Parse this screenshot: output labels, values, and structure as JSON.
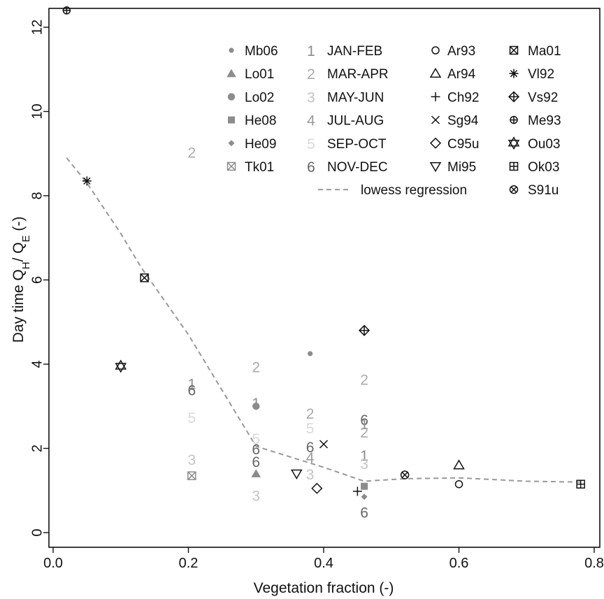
{
  "chart_data": {
    "type": "scatter",
    "xlabel": "Vegetation fraction (-)",
    "ylabel": {
      "prefix": "Day time Q",
      "sub1": "H",
      "mid": "/ Q",
      "sub2": "E",
      "suffix": " (-)"
    },
    "xlim": [
      0.0,
      0.8
    ],
    "ylim": [
      0,
      12
    ],
    "xticks": [
      "0.0",
      "0.2",
      "0.4",
      "0.6",
      "0.8"
    ],
    "yticks": [
      "0",
      "2",
      "4",
      "6",
      "8",
      "10",
      "12"
    ],
    "legend_position": "top-right",
    "colors": {
      "dark": "#111111",
      "mid": "#8c8c8c",
      "month_light": "#d0d0d0"
    },
    "month_labels": [
      {
        "digit": "1",
        "name": "JAN-FEB",
        "color": "#8c8c8c"
      },
      {
        "digit": "2",
        "name": "MAR-APR",
        "color": "#ababab"
      },
      {
        "digit": "3",
        "name": "MAY-JUN",
        "color": "#c4c4c4"
      },
      {
        "digit": "4",
        "name": "JUL-AUG",
        "color": "#9a9a9a"
      },
      {
        "digit": "5",
        "name": "SEP-OCT",
        "color": "#d9d9d9"
      },
      {
        "digit": "6",
        "name": "NOV-DEC",
        "color": "#666666"
      }
    ],
    "legend_col1": [
      {
        "label": "Mb06",
        "marker": "smalldot",
        "color": "#8c8c8c"
      },
      {
        "label": "Lo01",
        "marker": "filledtri",
        "color": "#8c8c8c"
      },
      {
        "label": "Lo02",
        "marker": "filledcircle",
        "color": "#8c8c8c"
      },
      {
        "label": "He08",
        "marker": "filledsquare",
        "color": "#8c8c8c"
      },
      {
        "label": "He09",
        "marker": "filleddiamond",
        "color": "#8c8c8c"
      },
      {
        "label": "Tk01",
        "marker": "boxx",
        "color": "#8c8c8c"
      }
    ],
    "legend_col3": [
      {
        "label": "Ar93",
        "marker": "circle",
        "color": "#111111"
      },
      {
        "label": "Ar94",
        "marker": "triangle",
        "color": "#111111"
      },
      {
        "label": "Ch92",
        "marker": "plus",
        "color": "#111111"
      },
      {
        "label": "Sg94",
        "marker": "cross",
        "color": "#111111"
      },
      {
        "label": "C95u",
        "marker": "diamond",
        "color": "#111111"
      },
      {
        "label": "Mi95",
        "marker": "trianglev",
        "color": "#111111"
      }
    ],
    "legend_col4": [
      {
        "label": "Ma01",
        "marker": "boxx",
        "color": "#111111"
      },
      {
        "label": "Vl92",
        "marker": "asterisk",
        "color": "#111111"
      },
      {
        "label": "Vs92",
        "marker": "diamondplus",
        "color": "#111111"
      },
      {
        "label": "Me93",
        "marker": "circleplus",
        "color": "#111111"
      },
      {
        "label": "Ou03",
        "marker": "star",
        "color": "#111111"
      },
      {
        "label": "Ok03",
        "marker": "boxplus",
        "color": "#111111"
      },
      {
        "label": "S91u",
        "marker": "circlex",
        "color": "#111111"
      }
    ],
    "lowess_label": "lowess regression",
    "lowess": {
      "x": [
        0.02,
        0.05,
        0.1,
        0.13,
        0.2,
        0.3,
        0.4,
        0.46,
        0.52,
        0.6,
        0.7,
        0.78
      ],
      "y": [
        8.9,
        8.3,
        7.1,
        6.3,
        4.7,
        2.05,
        1.55,
        1.22,
        1.28,
        1.3,
        1.22,
        1.2
      ]
    },
    "points": [
      {
        "series": "Me93",
        "x": 0.02,
        "y": 12.4
      },
      {
        "series": "Vl92",
        "x": 0.05,
        "y": 8.35
      },
      {
        "series": "Ma01",
        "x": 0.135,
        "y": 6.05
      },
      {
        "series": "Ou03",
        "x": 0.1,
        "y": 3.95
      },
      {
        "series": "Tk01",
        "x": 0.205,
        "y": 1.35
      },
      {
        "series": "Lo02",
        "x": 0.3,
        "y": 3.0
      },
      {
        "series": "Lo01",
        "x": 0.3,
        "y": 1.4
      },
      {
        "series": "Mb06",
        "x": 0.38,
        "y": 4.25
      },
      {
        "series": "Mi95",
        "x": 0.36,
        "y": 1.4
      },
      {
        "series": "C95u",
        "x": 0.39,
        "y": 1.05
      },
      {
        "series": "Sg94",
        "x": 0.4,
        "y": 2.1
      },
      {
        "series": "Ch92",
        "x": 0.45,
        "y": 0.98
      },
      {
        "series": "Vs92",
        "x": 0.46,
        "y": 4.8
      },
      {
        "series": "He08",
        "x": 0.46,
        "y": 1.1
      },
      {
        "series": "He09",
        "x": 0.46,
        "y": 0.85
      },
      {
        "series": "S91u",
        "x": 0.52,
        "y": 1.37
      },
      {
        "series": "Ar94",
        "x": 0.6,
        "y": 1.6
      },
      {
        "series": "Ar93",
        "x": 0.6,
        "y": 1.15
      },
      {
        "series": "Ok03",
        "x": 0.78,
        "y": 1.15
      }
    ],
    "month_points": [
      {
        "digit": "2",
        "x": 0.205,
        "y": 9.0
      },
      {
        "digit": "1",
        "x": 0.205,
        "y": 3.5
      },
      {
        "digit": "6",
        "x": 0.205,
        "y": 3.35
      },
      {
        "digit": "5",
        "x": 0.205,
        "y": 2.7
      },
      {
        "digit": "3",
        "x": 0.205,
        "y": 1.7
      },
      {
        "digit": "2",
        "x": 0.3,
        "y": 3.9
      },
      {
        "digit": "1",
        "x": 0.3,
        "y": 3.05
      },
      {
        "digit": "5",
        "x": 0.3,
        "y": 2.2
      },
      {
        "digit": "6",
        "x": 0.3,
        "y": 1.95
      },
      {
        "digit": "6",
        "x": 0.3,
        "y": 1.65
      },
      {
        "digit": "3",
        "x": 0.3,
        "y": 0.85
      },
      {
        "digit": "2",
        "x": 0.38,
        "y": 2.8
      },
      {
        "digit": "5",
        "x": 0.38,
        "y": 2.45
      },
      {
        "digit": "6",
        "x": 0.38,
        "y": 2.0
      },
      {
        "digit": "4",
        "x": 0.38,
        "y": 1.75
      },
      {
        "digit": "3",
        "x": 0.38,
        "y": 1.35
      },
      {
        "digit": "2",
        "x": 0.46,
        "y": 3.6
      },
      {
        "digit": "6",
        "x": 0.46,
        "y": 2.65
      },
      {
        "digit": "1",
        "x": 0.46,
        "y": 2.55
      },
      {
        "digit": "2",
        "x": 0.46,
        "y": 2.35
      },
      {
        "digit": "1",
        "x": 0.46,
        "y": 1.8
      },
      {
        "digit": "3",
        "x": 0.46,
        "y": 1.6
      },
      {
        "digit": "6",
        "x": 0.46,
        "y": 0.45
      }
    ]
  }
}
